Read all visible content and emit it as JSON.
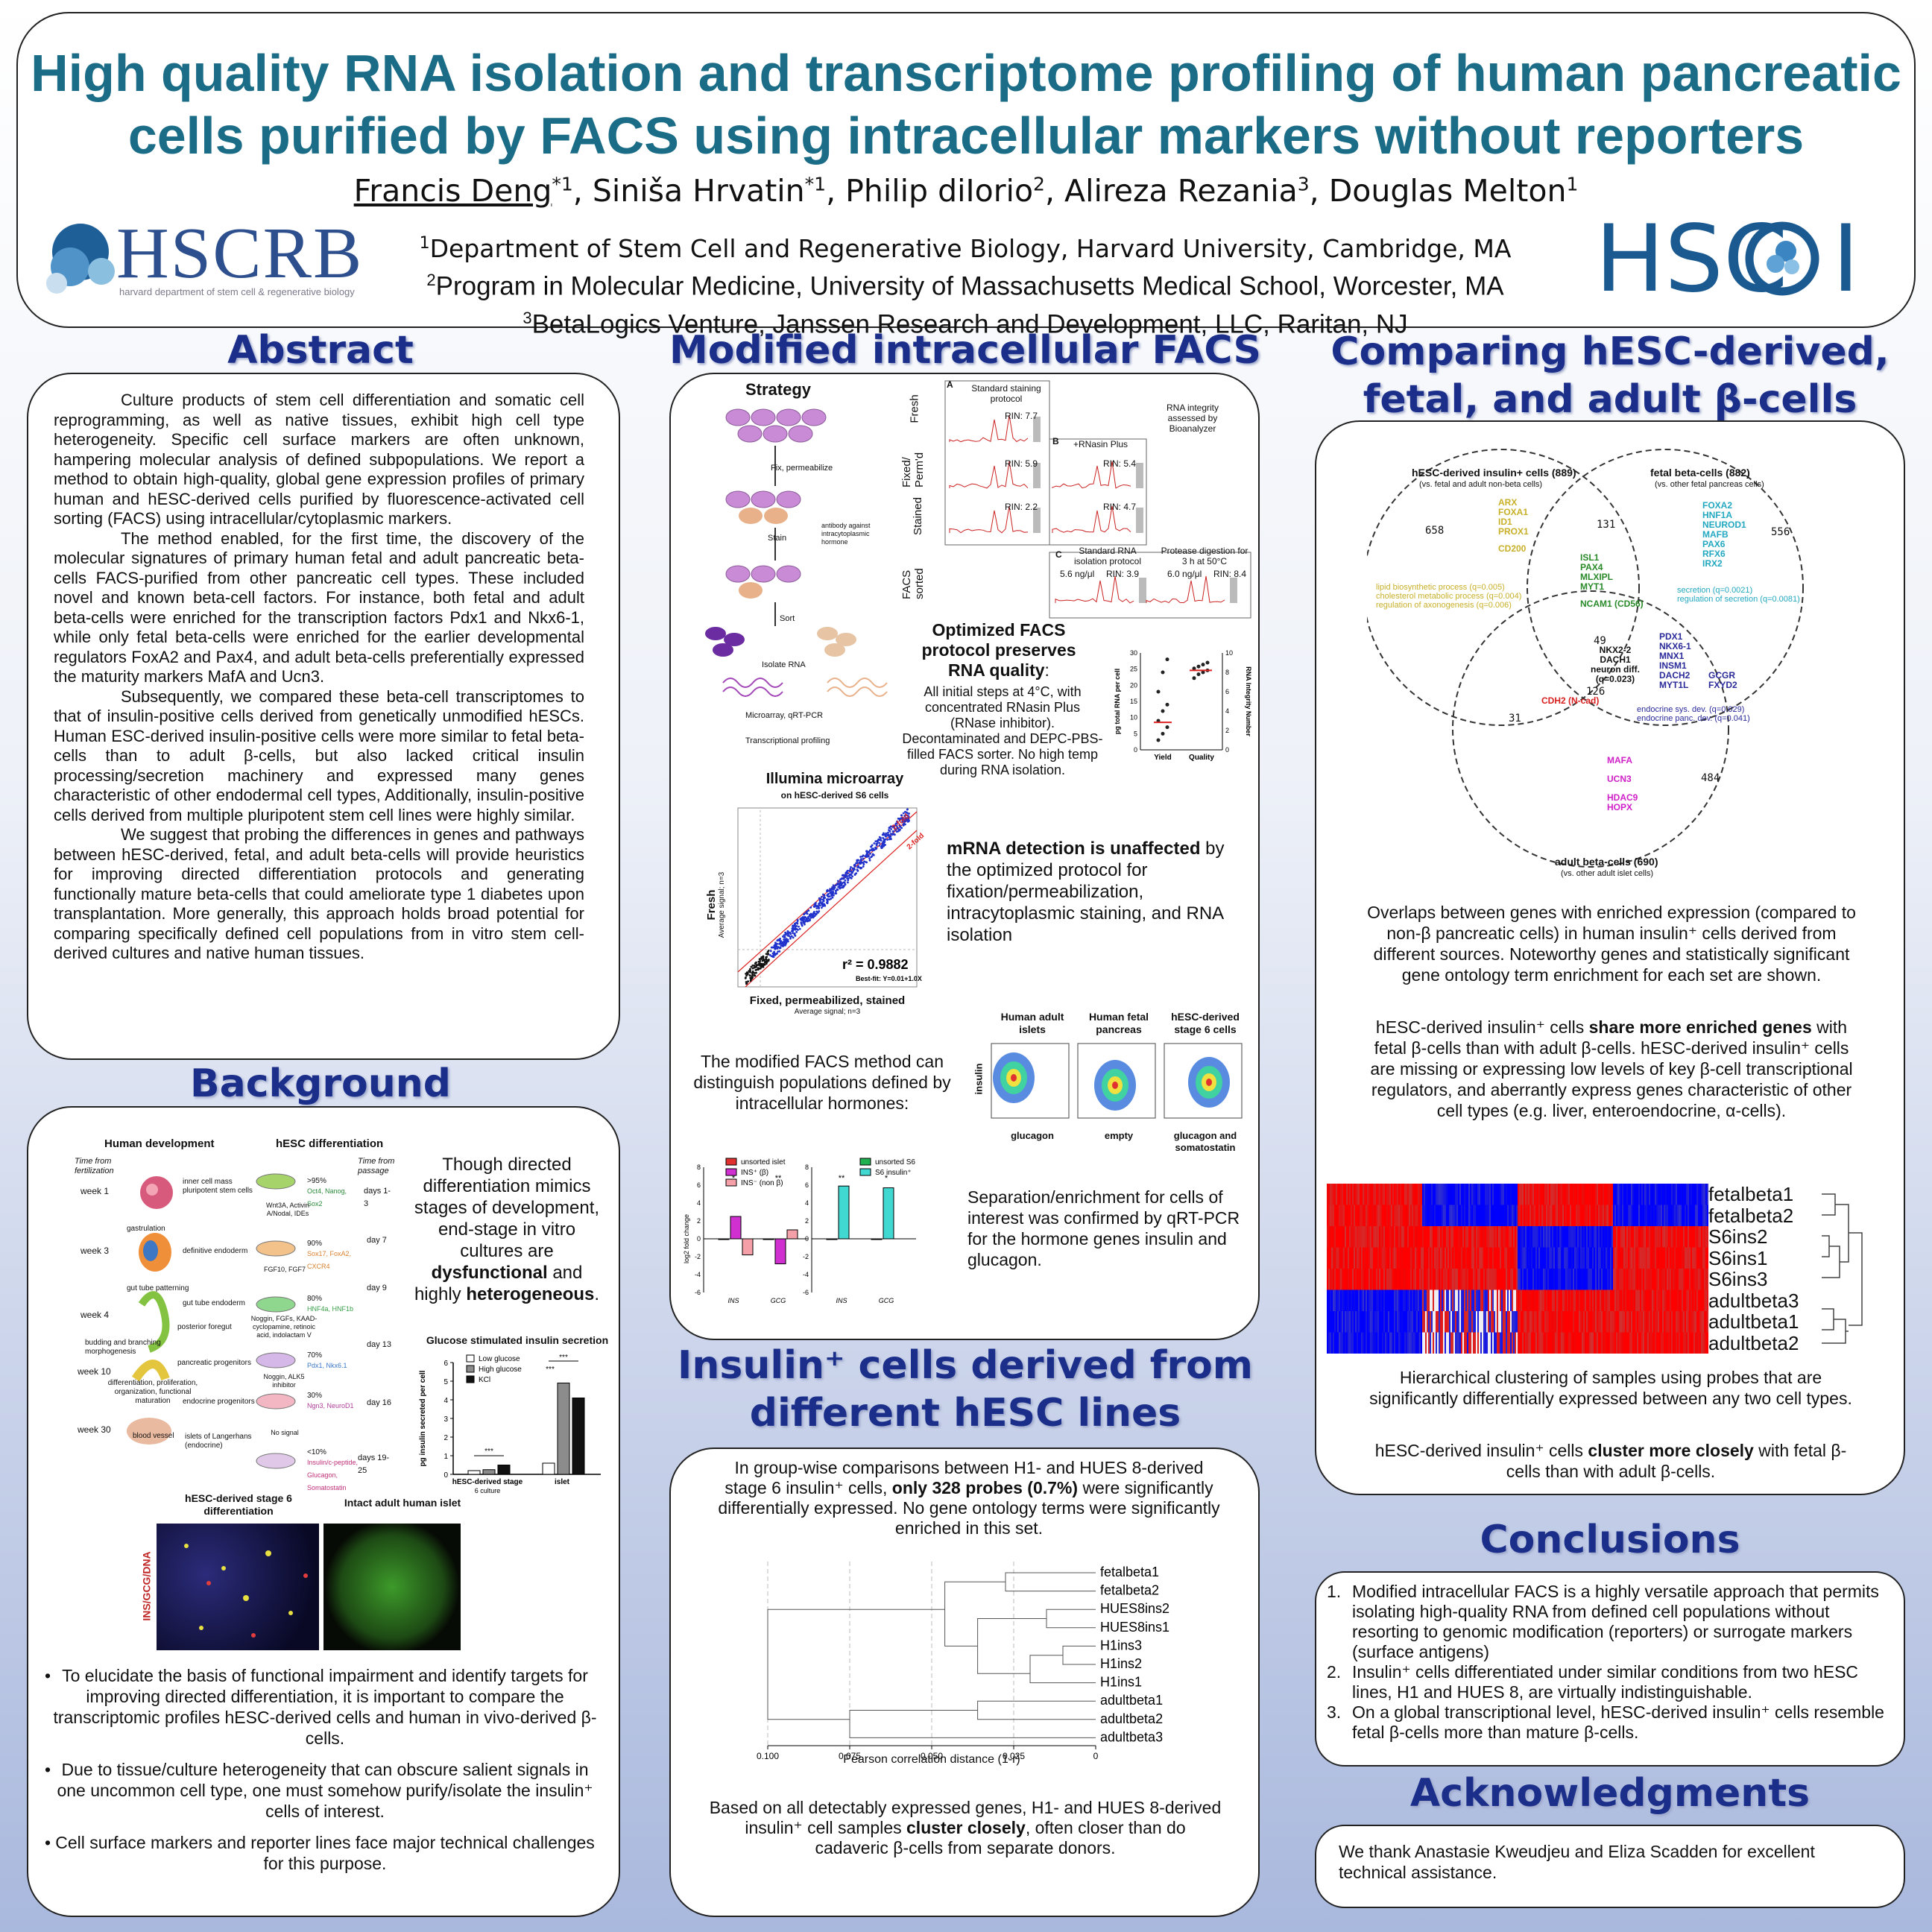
{
  "header": {
    "title_line1": "High quality RNA isolation and transcriptome profiling of human pancreatic",
    "title_line2": "cells purified by FACS using intracellular markers without reporters",
    "authors": [
      {
        "name": "Francis Deng",
        "sup": "*1"
      },
      {
        "name": "Siniša Hrvatin",
        "sup": "*1"
      },
      {
        "name": "Philip diIorio",
        "sup": "2"
      },
      {
        "name": "Alireza Rezania",
        "sup": "3"
      },
      {
        "name": "Douglas Melton",
        "sup": "1"
      }
    ],
    "affiliations": [
      {
        "num": "1",
        "text": "Department of Stem Cell and Regenerative Biology, Harvard University, Cambridge, MA"
      },
      {
        "num": "2",
        "text": "Program in Molecular Medicine, University of Massachusetts Medical School, Worcester, MA"
      },
      {
        "num": "3",
        "text": "BetaLogics Venture, Janssen Research and Development, LLC, Raritan, NJ"
      }
    ],
    "logo_left_text": "HSCRB",
    "logo_left_sub": "harvard department of stem cell & regenerative biology",
    "logo_right_text": "HSCI",
    "logo_right_letters": "HSC",
    "logo_right_end": "I"
  },
  "abstract": {
    "title": "Abstract",
    "p1": "Culture products of stem cell differentiation and somatic cell reprogramming, as well as native tissues, exhibit high cell type heterogeneity. Specific cell surface markers are often unknown, hampering molecular analysis of defined subpopulations. We report a method to obtain high-quality, global gene expression profiles of primary human and hESC-derived cells purified by fluorescence-activated cell sorting (FACS) using intracellular/cytoplasmic markers.",
    "p2": "The method enabled, for the first time, the discovery of the molecular signatures of primary human fetal and adult pancreatic beta-cells FACS-purified from other pancreatic cell types. These included novel and known beta-cell factors. For instance, both fetal and adult beta-cells were enriched for the transcription factors Pdx1 and Nkx6-1, while only fetal beta-cells were enriched for the earlier developmental regulators FoxA2 and Pax4, and adult beta-cells preferentially expressed the maturity markers MafA and Ucn3.",
    "p3": "Subsequently, we compared these beta-cell transcriptomes to that of insulin-positive cells derived from genetically unmodified hESCs. Human ESC-derived insulin-positive cells were more similar to fetal beta-cells than to adult β-cells, but also lacked critical insulin processing/secretion machinery and expressed many genes characteristic of other endodermal cell types, Additionally, insulin-positive cells derived from multiple pluripotent stem cell lines were highly similar.",
    "p4": "We suggest that probing the differences in genes and pathways between hESC-derived, fetal, and adult beta-cells will provide heuristics for improving directed differentiation protocols and generating functionally mature beta-cells that could ameliorate type 1 diabetes upon transplantation. More generally, this approach holds broad potential for comparing specifically defined cell populations from in vitro stem cell-derived cultures and native human tissues."
  },
  "background": {
    "title": "Background",
    "fig_human_dev": "Human development",
    "fig_hesc_diff": "hESC differentiation",
    "time_fert": "Time from fertilization",
    "time_passage": "Time from passage",
    "weeks": [
      "week 1",
      "week 3",
      "week 4",
      "week 10",
      "week 30"
    ],
    "stages": [
      "inner cell mass pluripotent stem cells",
      "gastrulation",
      "definitive endoderm",
      "gut tube patterning",
      "gut tube endoderm",
      "posterior foregut",
      "budding and branching morphogenesis",
      "pancreatic progenitors",
      "endocrine progenitors",
      "differentiation, proliferation, organization, functional maturation",
      "islets of Langerhans (endocrine)",
      "blood vessel"
    ],
    "days": [
      "days 1-3",
      "day 7",
      "day 9",
      "day 13",
      "day 16",
      "days 19-25"
    ],
    "percents": [
      ">95%",
      "90%",
      "80%",
      "70%",
      "30%",
      "<10%"
    ],
    "markers": [
      "Oct4, Nanog, Sox2",
      "Sox17, FoxA2, CXCR4",
      "HNF4a, HNF1b",
      "Pdx1, Nkx6.1",
      "Ngn3, NeuroD1",
      "Insulin/c-peptide, Glucagon, Somatostatin"
    ],
    "factors": [
      "Wnt3A, Activin A/Nodal, IDEs",
      "FGF10, FGF7",
      "Noggin, FGFs, KAAD-cyclopamine, retinoic acid, indolactam V",
      "Noggin, ALK5 inhibitor",
      "No signal"
    ],
    "caption_text": "Though directed differentiation mimics stages of development, end-stage in vitro cultures are",
    "caption_bold1": "dysfunctional",
    "caption_and": "and highly",
    "caption_bold2": "heterogeneous",
    "chart_title": "Glucose stimulated insulin secretion",
    "img_label1": "hESC-derived stage 6 differentiation",
    "img_label2": "Intact adult human islet",
    "img_side": "INS/GCG/DNA",
    "bullets": [
      "To elucidate the basis of functional impairment and identify targets for improving directed differentiation, it is important to compare the transcriptomic profiles hESC-derived cells and human in vivo-derived β-cells.",
      "Due to tissue/culture heterogeneity that can obscure salient signals in one uncommon cell type, one must somehow purify/isolate the insulin⁺ cells of interest.",
      "Cell surface markers and reporter lines face major technical challenges for this purpose."
    ]
  },
  "facs": {
    "title": "Modified intracellular FACS",
    "strategy": "Strategy",
    "steps": [
      "Fix, permeabilize",
      "Stain",
      "Sort",
      "Isolate RNA",
      "Microarray, qRT-PCR",
      "Transcriptional profiling"
    ],
    "stain_note": "antibody against intracytoplasmic hormone",
    "rows": [
      "Fresh",
      "Fixed/ Perm'd",
      "Stained",
      "FACS sorted"
    ],
    "panel_a": "A",
    "panel_b": "B",
    "panel_c": "C",
    "std_protocol": "Standard staining protocol",
    "rnasin": "+RNasin Plus",
    "std_rna": "Standard RNA isolation protocol",
    "protease": "Protease digestion for 3 h at 50°C",
    "rin_a": [
      "RIN: 7.7",
      "RIN: 5.9",
      "RIN: 2.2"
    ],
    "rin_b": [
      "RIN: 5.4",
      "RIN: 4.7"
    ],
    "rin_c": [
      "5.6 ng/μl",
      "RIN: 3.9",
      "6.0 ng/μl",
      "RIN: 8.4"
    ],
    "bioanalyzer": "RNA integrity assessed by Bioanalyzer",
    "opt_title": "Optimized FACS protocol preserves RNA quality",
    "opt_colon": ":",
    "opt_body": "All initial steps at 4°C, with concentrated RNasin Plus (RNase inhibitor). Decontaminated and DEPC-PBS-filled FACS sorter. No high temp during RNA isolation.",
    "yield_ylabel": "pg total RNA per cell",
    "yield_y2label": "RNA Integrity Number",
    "yield_x": [
      "Yield",
      "Quality"
    ],
    "micro_title": "Illumina microarray",
    "micro_sub": "on hESC-derived S6 cells",
    "micro_ylabel": "Fresh",
    "micro_ysub": "Average signal; n=3",
    "micro_xlabel": "Fixed, permeabilized, stained",
    "micro_xsub": "Average signal; n=3",
    "r2": "r² = 0.9882",
    "bestfit": "Best-fit: Y=0.01+1.0X",
    "fold": "2-fold",
    "mrna_bold": "mRNA detection is unaffected",
    "mrna_rest": "by the optimized protocol for fixation/permeabilization, intracytoplasmic staining, and RNA isolation",
    "pops_text": "The modified FACS method can distinguish populations defined by intracellular hormones:",
    "pops_titles": [
      "Human adult islets",
      "Human fetal pancreas",
      "hESC-derived stage 6 cells"
    ],
    "pops_ylabel": "insulin",
    "pops_x": [
      "glucagon",
      "empty",
      "glucagon and somatostatin"
    ],
    "qpcr_legend": [
      "unsorted islet",
      "INS⁺ (β)",
      "INS⁻ (non β)",
      "unsorted S6",
      "S6 insulin⁺"
    ],
    "qpcr_ylabel": "log2 fold change",
    "qpcr_genes": [
      "INS",
      "GCG",
      "INS",
      "GCG"
    ],
    "qpcr_text": "Separation/enrichment for cells of interest was confirmed by qRT-PCR for the hormone genes insulin and glucagon."
  },
  "lines": {
    "title1": "Insulin⁺ cells derived from",
    "title2": "different hESC lines",
    "intro_pre": "In group-wise comparisons between H1- and HUES 8-derived stage 6 insulin⁺ cells,",
    "intro_bold": "only 328 probes (0.7%)",
    "intro_post": "were significantly differentially expressed. No gene ontology terms were significantly enriched in this set.",
    "xlabel": "Pearson correlation distance (1-r)",
    "bottom_pre": "Based on all detectably expressed genes, H1- and HUES 8-derived insulin⁺ cell samples",
    "bottom_bold": "cluster closely",
    "bottom_post": ", often closer than do cadaveric β-cells from separate donors."
  },
  "compare": {
    "title1": "Comparing hESC-derived,",
    "title2": "fetal, and adult β-cells",
    "venn_hesc_title": "hESC-derived insulin+ cells (889)",
    "venn_hesc_sub": "(vs. fetal and adult non-beta cells)",
    "venn_fetal_title": "fetal beta-cells (882)",
    "venn_fetal_sub": "(vs. other fetal pancreas cells)",
    "venn_adult_title": "adult beta-cells (690)",
    "venn_adult_sub": "(vs. other adult islet cells)",
    "counts": [
      "658",
      "131",
      "556",
      "49",
      "126",
      "31",
      "484"
    ],
    "hesc_genes": [
      "ARX",
      "FOXA1",
      "ID1",
      "PROX1",
      "CD200"
    ],
    "hesc_go": [
      "lipid biosynthetic process (q=0.005)",
      "cholesterol metabolic process (q=0.004)",
      "regulation of axonogenesis (q=0.006)"
    ],
    "fetal_genes": [
      "FOXA2",
      "HNF1A",
      "NEUROD1",
      "MAFB",
      "PAX6",
      "RFX6",
      "IRX2"
    ],
    "fetal_go": [
      "secretion (q=0.0021)",
      "regulation of secretion (q=0.0081)"
    ],
    "hf_genes": [
      "ISL1",
      "PAX4",
      "MLXIPL",
      "MYT1",
      "NCAM1 (CD56)"
    ],
    "ha_genes": [
      "NKX2-2",
      "DACH1",
      "neuron diff.",
      "(q=0.023)"
    ],
    "ha_red": "CDH2 (N-cad)",
    "all_genes1": [
      "PDX1",
      "NKX6-1",
      "MNX1",
      "INSM1",
      "DACH2",
      "MYT1L"
    ],
    "all_genes2": [
      "GCGR",
      "FXYD2"
    ],
    "all_go": [
      "endocrine sys. dev. (q=0.029)",
      "endocrine panc. dev. (q=0.041)"
    ],
    "adult_genes": [
      "MAFA",
      "UCN3",
      "HDAC9",
      "HOPX"
    ],
    "p_venn": "Overlaps between genes with enriched expression (compared to non-β pancreatic cells) in human insulin⁺ cells derived from different sources. Noteworthy genes and statistically significant gene ontology term enrichment for each set are shown.",
    "p2_pre": "hESC-derived insulin⁺ cells",
    "p2_bold": "share more enriched genes",
    "p2_post": "with fetal β-cells than with adult β-cells. hESC-derived insulin⁺ cells are missing or expressing low levels of key β-cell transcriptional regulators, and aberrantly express genes characteristic of other cell types (e.g. liver, enteroendocrine, α-cells).",
    "heat_labels": [
      "fetalbeta1",
      "fetalbeta2",
      "S6ins2",
      "S6ins1",
      "S6ins3",
      "adultbeta3",
      "adultbeta1",
      "adultbeta2"
    ],
    "p_heat": "Hierarchical clustering of samples using probes that are significantly differentially expressed between any two cell types.",
    "p4_pre": "hESC-derived insulin⁺ cells",
    "p4_bold": "cluster more closely",
    "p4_post": "with fetal β-cells than with adult β-cells."
  },
  "conclusions": {
    "title": "Conclusions",
    "items": [
      "Modified intracellular FACS is a highly versatile approach that permits isolating high-quality RNA from defined cell populations without resorting to genomic modification (reporters) or surrogate markers (surface antigens)",
      "Insulin⁺ cells differentiated under similar conditions from two hESC lines, H1 and HUES 8, are virtually indistinguishable.",
      "On a global transcriptional level, hESC-derived insulin⁺ cells resemble fetal β-cells more than mature β-cells."
    ]
  },
  "ack": {
    "title": "Acknowledgments",
    "text": "We thank Anastasie Kweudjeu and Eliza Scadden for excellent technical assistance."
  },
  "chart_data": [
    {
      "type": "bar",
      "title": "Glucose stimulated insulin secretion",
      "ylabel": "pg insulin secreted per cell",
      "categories": [
        "hESC-derived stage 6 culture",
        "islet"
      ],
      "series": [
        {
          "name": "Low glucose",
          "values": [
            0.2,
            0.6
          ]
        },
        {
          "name": "High glucose",
          "values": [
            0.25,
            4.9
          ]
        },
        {
          "name": "KCl",
          "values": [
            0.5,
            4.1
          ]
        }
      ],
      "yticks": [
        0,
        1,
        2,
        3,
        4,
        5,
        6
      ],
      "ylim": [
        0,
        6
      ],
      "significance": [
        "***",
        "***",
        "***"
      ],
      "legend": "top-left"
    },
    {
      "type": "scatter",
      "title": "",
      "ylabel": "pg total RNA per cell",
      "y2label": "RNA Integrity Number",
      "categories": [
        "Yield",
        "Quality"
      ],
      "yticks": [
        0,
        5,
        10,
        15,
        20,
        25,
        30
      ],
      "y2ticks": [
        0,
        2,
        4,
        6,
        8,
        10
      ],
      "ylim": [
        0,
        30
      ],
      "y2lim": [
        0,
        10
      ],
      "yield_mean": 8.5,
      "quality_mean": 8.2
    },
    {
      "type": "bar",
      "title": "",
      "ylabel": "log2 fold change",
      "categories": [
        "INS",
        "GCG",
        "INS",
        "GCG"
      ],
      "series": [
        {
          "name": "unsorted islet",
          "values": [
            0,
            0,
            null,
            null
          ]
        },
        {
          "name": "INS⁺ (β)",
          "values": [
            2.5,
            -2.8,
            null,
            null
          ]
        },
        {
          "name": "INS⁻ (non β)",
          "values": [
            -1.8,
            1.0,
            null,
            null
          ]
        },
        {
          "name": "unsorted S6",
          "values": [
            null,
            null,
            0,
            0
          ]
        },
        {
          "name": "S6 insulin⁺",
          "values": [
            null,
            null,
            5.9,
            5.7
          ]
        }
      ],
      "yticks": [
        -6,
        -4,
        -2,
        0,
        2,
        4,
        6,
        8
      ],
      "ylim": [
        -6,
        8
      ],
      "significance": [
        "*",
        "**",
        "**",
        "*"
      ]
    },
    {
      "type": "dendrogram",
      "title": "",
      "xlabel": "Pearson correlation distance (1-r)",
      "xticks": [
        "0.100",
        "0.075",
        "0.050",
        "0.025",
        "0"
      ],
      "leaves": [
        "fetalbeta1",
        "fetalbeta2",
        "HUES8ins2",
        "HUES8ins1",
        "H1ins3",
        "H1ins2",
        "H1ins1",
        "adultbeta1",
        "adultbeta2",
        "adultbeta3"
      ]
    }
  ]
}
